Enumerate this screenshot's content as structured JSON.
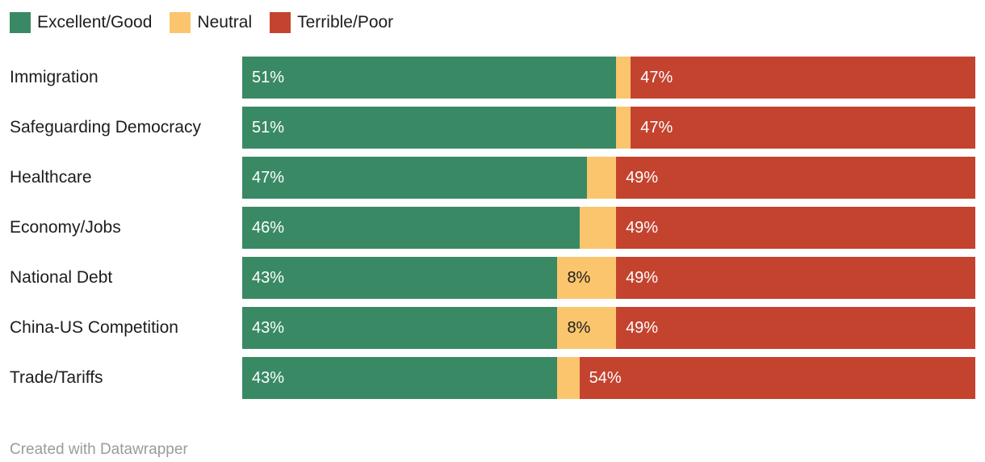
{
  "colors": {
    "excellent_good": "#398a64",
    "neutral": "#fbc56d",
    "terrible_poor": "#c4432f",
    "label_on_dark": "#ffffff",
    "label_on_light": "#1d1d1d",
    "row_label": "#1d1d1d",
    "footer_text": "#9b9b9b",
    "background": "#ffffff"
  },
  "legend": {
    "items": [
      {
        "label": "Excellent/Good",
        "color": "#398a64"
      },
      {
        "label": "Neutral",
        "color": "#fbc56d"
      },
      {
        "label": "Terrible/Poor",
        "color": "#c4432f"
      }
    ]
  },
  "footer": {
    "credit": "Created with Datawrapper"
  },
  "chart_data": {
    "type": "bar",
    "subtype": "horizontal-stacked",
    "title": "",
    "xlabel": "",
    "ylabel": "",
    "xlim": [
      0,
      100
    ],
    "value_format": "percent",
    "legend_position": "top",
    "grid": false,
    "categories": [
      "Immigration",
      "Safeguarding Democracy",
      "Healthcare",
      "Economy/Jobs",
      "National Debt",
      "China-US Competition",
      "Trade/Tariffs"
    ],
    "series": [
      {
        "name": "Excellent/Good",
        "color": "#398a64",
        "label_color": "#ffffff",
        "values": [
          51,
          51,
          47,
          46,
          43,
          43,
          43
        ],
        "labels": [
          "51%",
          "51%",
          "47%",
          "46%",
          "43%",
          "43%",
          "43%"
        ]
      },
      {
        "name": "Neutral",
        "color": "#fbc56d",
        "label_color": "#1d1d1d",
        "values": [
          2,
          2,
          4,
          5,
          8,
          8,
          3
        ],
        "labels": [
          "",
          "",
          "",
          "",
          "8%",
          "8%",
          ""
        ]
      },
      {
        "name": "Terrible/Poor",
        "color": "#c4432f",
        "label_color": "#ffffff",
        "values": [
          47,
          47,
          49,
          49,
          49,
          49,
          54
        ],
        "labels": [
          "47%",
          "47%",
          "49%",
          "49%",
          "49%",
          "49%",
          "54%"
        ]
      }
    ]
  }
}
